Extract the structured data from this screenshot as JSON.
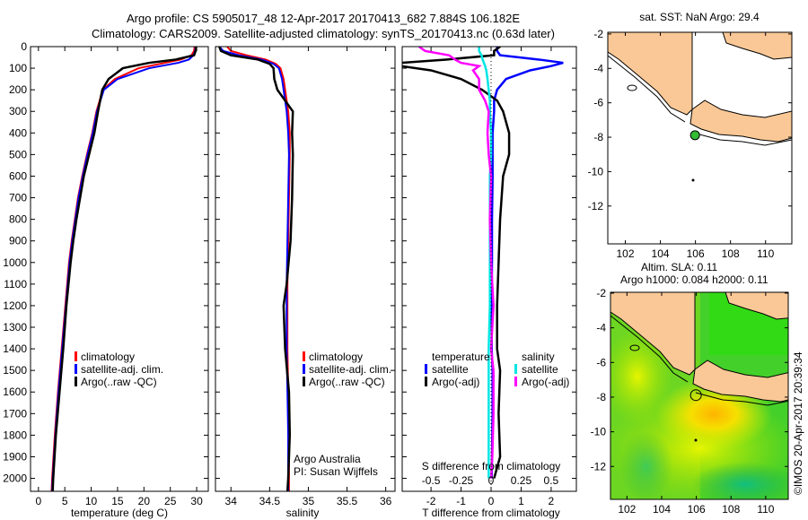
{
  "title": {
    "line1": "Argo profile: CS 5905017_48 12-Apr-2017 20170413_682 7.884S 106.182E",
    "line2": "Climatology: CARS2009. Satellite-adjusted climatology: synTS_20170413.nc (0.63d later)"
  },
  "colors": {
    "climatology": "#ff0000",
    "satellite": "#0000ff",
    "argo": "#000000",
    "sal_satellite": "#00e5e5",
    "sal_argo": "#ff00ff",
    "land": "#fac896",
    "marker": "#33bb33"
  },
  "chart_data": [
    {
      "type": "line",
      "id": "temperature",
      "xlabel": "temperature (deg C)",
      "xlim": [
        -1.5,
        32.2
      ],
      "ylim": [
        0,
        2060
      ],
      "xticks": [
        0,
        5,
        10,
        15,
        20,
        25,
        30
      ],
      "yticks": [
        0,
        100,
        200,
        300,
        400,
        500,
        600,
        700,
        800,
        900,
        1000,
        1100,
        1200,
        1300,
        1400,
        1500,
        1600,
        1700,
        1800,
        1900,
        2000
      ],
      "legend": [
        "climatology",
        "satellite-adj. clim.",
        "Argo(..raw -QC)"
      ],
      "depth": [
        0,
        20,
        40,
        60,
        75,
        100,
        150,
        200,
        300,
        400,
        500,
        600,
        700,
        800,
        900,
        1000,
        1200,
        1400,
        1600,
        1800,
        2000,
        2060
      ],
      "series": [
        {
          "name": "climatology",
          "values": [
            29.6,
            29.5,
            29,
            27,
            24,
            19,
            14.5,
            12.2,
            11,
            10.2,
            9.2,
            8.3,
            7.5,
            6.9,
            6.3,
            5.8,
            5.1,
            4.4,
            3.7,
            3.1,
            2.6,
            2.5
          ]
        },
        {
          "name": "satellite-adj. clim.",
          "values": [
            29.8,
            29.7,
            29.4,
            28.5,
            26.5,
            21,
            15,
            12.4,
            11.1,
            10.3,
            9.3,
            8.4,
            7.6,
            7,
            6.4,
            5.9,
            5.2,
            4.5,
            3.8,
            3.2,
            2.7,
            2.6
          ]
        },
        {
          "name": "Argo(..raw -QC)",
          "values": [
            29.9,
            29.8,
            29.5,
            26,
            21,
            16,
            13.3,
            12.1,
            11.3,
            10.6,
            9.6,
            8.6,
            7.9,
            7.2,
            6.6,
            6.1,
            5.3,
            4.7,
            4,
            3.3,
            2.8,
            2.7
          ]
        }
      ]
    },
    {
      "type": "line",
      "id": "salinity",
      "xlabel": "salinity",
      "xlim": [
        33.8,
        36.12
      ],
      "ylim": [
        0,
        2060
      ],
      "xticks": [
        34,
        34.5,
        35,
        35.5,
        36
      ],
      "legend": [
        "climatology",
        "satellite-adj. clim.",
        "Argo(..raw -QC)"
      ],
      "annotation": [
        "Argo Australia",
        "PI: Susan Wijffels"
      ],
      "depth": [
        0,
        20,
        40,
        60,
        80,
        100,
        150,
        200,
        250,
        300,
        400,
        500,
        700,
        900,
        1100,
        1200,
        1400,
        1600,
        1800,
        2000,
        2060
      ],
      "series": [
        {
          "name": "climatology",
          "values": [
            33.95,
            34.0,
            34.2,
            34.45,
            34.58,
            34.64,
            34.68,
            34.7,
            34.72,
            34.74,
            34.76,
            34.76,
            34.75,
            34.74,
            34.73,
            34.73,
            34.73,
            34.74,
            34.75,
            34.75,
            34.75
          ]
        },
        {
          "name": "satellite-adj. clim.",
          "values": [
            33.85,
            33.9,
            34.1,
            34.4,
            34.55,
            34.62,
            34.66,
            34.68,
            34.7,
            34.72,
            34.74,
            34.75,
            34.74,
            34.73,
            34.72,
            34.72,
            34.72,
            34.73,
            34.74,
            34.74,
            34.74
          ]
        },
        {
          "name": "Argo(..raw -QC)",
          "values": [
            33.85,
            33.87,
            34.0,
            34.35,
            34.5,
            34.55,
            34.56,
            34.6,
            34.7,
            34.8,
            34.79,
            34.8,
            34.79,
            34.77,
            34.72,
            34.68,
            34.7,
            34.75,
            34.76,
            34.74,
            34.73
          ]
        }
      ]
    },
    {
      "type": "line",
      "id": "differences",
      "xlabel": "T difference from climatology",
      "x2label": "S difference from climatology",
      "xlim": [
        -2.96,
        2.84
      ],
      "x2lim": [
        -0.74,
        0.71
      ],
      "ylim": [
        0,
        2060
      ],
      "xticks": [
        -2,
        -1,
        0,
        1,
        2
      ],
      "x2ticks": [
        -0.5,
        -0.25,
        0,
        0.25,
        0.5
      ],
      "legend": {
        "temperature_header": "temperature",
        "salinity_header": "salinity",
        "t_sat": "satellite",
        "t_argo": "Argo(-adj)",
        "s_sat": "satellite",
        "s_argo": "Argo(-adj)"
      },
      "depth": [
        0,
        20,
        40,
        60,
        75,
        90,
        110,
        150,
        200,
        250,
        300,
        400,
        500,
        600,
        800,
        1000,
        1200,
        1400,
        1500,
        1700,
        1900,
        2000
      ],
      "series": [
        {
          "name": "T satellite",
          "axis": "T",
          "values": [
            0.2,
            0.2,
            0.3,
            1.6,
            2.4,
            2.0,
            1.3,
            0.5,
            0.2,
            0.1,
            0.1,
            0.05,
            0.05,
            0.05,
            0.03,
            0.03,
            0.02,
            0.02,
            0.05,
            0.05,
            0.03,
            0.02
          ]
        },
        {
          "name": "T Argo(-adj)",
          "axis": "T",
          "values": [
            0.3,
            0.1,
            0.1,
            -1.5,
            -3,
            -3,
            -2,
            -1,
            -0.3,
            0.2,
            0.4,
            0.6,
            0.6,
            0.4,
            0.3,
            0.25,
            0.2,
            0.2,
            0.3,
            0.25,
            0.3,
            0.1
          ]
        },
        {
          "name": "S satellite",
          "axis": "S",
          "values": [
            -0.1,
            -0.1,
            -0.08,
            -0.07,
            -0.06,
            -0.05,
            -0.04,
            -0.03,
            -0.02,
            -0.01,
            -0.01,
            0,
            0,
            -0.01,
            -0.01,
            -0.01,
            -0.01,
            -0.02,
            -0.02,
            -0.02,
            -0.02,
            -0.02
          ]
        },
        {
          "name": "S Argo(-adj)",
          "axis": "S",
          "values": [
            -0.6,
            -0.55,
            -0.35,
            -0.3,
            -0.25,
            -0.1,
            -0.15,
            -0.1,
            -0.1,
            -0.05,
            -0.02,
            -0.03,
            -0.02,
            0.0,
            -0.01,
            0.0,
            0.02,
            0.0,
            0.02,
            0.02,
            0.01,
            0.0
          ]
        }
      ]
    },
    {
      "type": "map",
      "id": "sst-map",
      "title": "sat. SST: NaN Argo: 29.4",
      "xticks": [
        102,
        104,
        106,
        108,
        110
      ],
      "yticks": [
        -2,
        -4,
        -6,
        -8,
        -10,
        -12
      ],
      "marker": {
        "lon": 106.182,
        "lat": -7.884
      }
    },
    {
      "type": "heatmap",
      "id": "sla-map",
      "title1": "Altim. SLA: 0.11",
      "title2": "Argo h1000: 0.084 h2000: 0.11",
      "xticks": [
        102,
        104,
        106,
        108,
        110
      ],
      "yticks": [
        -2,
        -4,
        -6,
        -8,
        -10,
        -12
      ],
      "marker": {
        "lon": 106.182,
        "lat": -7.884
      }
    }
  ],
  "footer": "©IMOS 20-Apr-2017 20:39:34"
}
